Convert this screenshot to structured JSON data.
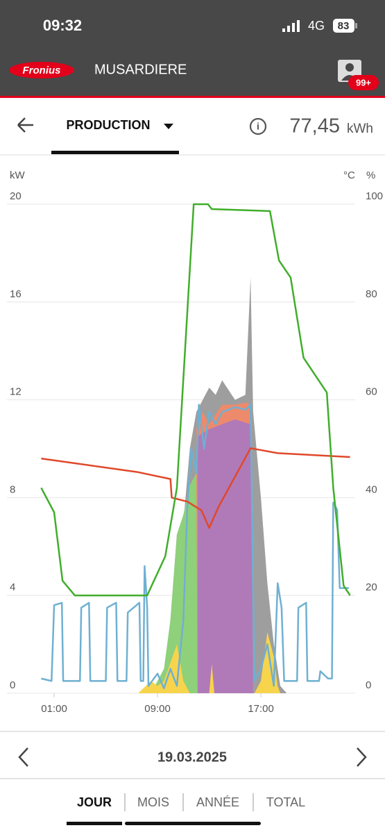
{
  "status_bar": {
    "time": "09:32",
    "network": "4G",
    "battery": "83"
  },
  "app_bar": {
    "logo": "Fronius",
    "site": "MUSARDIERE",
    "badge": "99+"
  },
  "header": {
    "tab": "PRODUCTION",
    "total": "77,45",
    "unit": "kWh"
  },
  "chart_data": {
    "type": "line",
    "y_label": "kW",
    "y2_label_1": "°C",
    "y2_label_2": "%",
    "xlim": [
      0,
      24
    ],
    "xticks": [
      {
        "value": 1,
        "label": "01:00"
      },
      {
        "value": 9,
        "label": "09:00"
      },
      {
        "value": 17,
        "label": "17:00"
      }
    ],
    "ylim": [
      0,
      20
    ],
    "yticks": [
      0,
      4,
      8,
      12,
      16,
      20
    ],
    "y2lim": [
      0,
      100
    ],
    "y2ticks": [
      0,
      20,
      40,
      60,
      80,
      100
    ],
    "grid": true,
    "series": [
      {
        "type": "area",
        "color": "#9e9e9e",
        "axis": "y",
        "x": [
          8.5,
          9.5,
          10.0,
          10.5,
          11.0,
          11.5,
          12.0,
          12.5,
          13.0,
          13.5,
          14.0,
          15.0,
          15.8,
          16.2,
          16.4,
          17.0,
          17.5,
          18.0,
          18.5,
          19.0
        ],
        "values": [
          0,
          0.5,
          3,
          6.5,
          7.0,
          10,
          11.5,
          12.0,
          12.5,
          12.2,
          12.8,
          12.0,
          12.2,
          17.0,
          11.5,
          8.0,
          4.5,
          2.0,
          0.3,
          0
        ]
      },
      {
        "type": "area",
        "color": "#ee8a6c",
        "axis": "y",
        "x": [
          12.0,
          12.0,
          12.5,
          13.0,
          14.0,
          15.0,
          16.0,
          16.3,
          16.3
        ],
        "values": [
          0,
          10.8,
          11.5,
          11.0,
          11.8,
          11.8,
          11.9,
          11.0,
          0
        ]
      },
      {
        "type": "area",
        "color": "#b07ab8",
        "axis": "y",
        "x": [
          12.1,
          12.1,
          13.0,
          14.0,
          15.0,
          16.2,
          16.4
        ],
        "values": [
          0,
          10.5,
          10.8,
          11.0,
          11.2,
          11.0,
          0
        ]
      },
      {
        "type": "area",
        "color": "#8fd07a",
        "axis": "y",
        "x": [
          8.5,
          9.5,
          10.0,
          10.5,
          11.0,
          11.5,
          12.0,
          12.1
        ],
        "values": [
          0,
          1.0,
          3.0,
          6.5,
          7.3,
          8.5,
          9.0,
          0
        ]
      },
      {
        "type": "area",
        "color": "#f7d44c",
        "axis": "y",
        "x": [
          7.5,
          8.5,
          9.0,
          9.5,
          10.5,
          11.0,
          11.5,
          13.0,
          13.2,
          13.4,
          16.5,
          17.0,
          17.5,
          18.0,
          18.3,
          18.5
        ],
        "values": [
          0,
          0.5,
          0.3,
          0.5,
          2.0,
          0.5,
          0,
          0,
          1.2,
          0,
          0,
          0.5,
          2.5,
          1.5,
          0.3,
          0
        ]
      },
      {
        "type": "line",
        "color": "#6fb0d2",
        "axis": "y",
        "x": [
          0,
          0.8,
          1.0,
          1.6,
          1.7,
          3.0,
          3.1,
          3.7,
          3.8,
          5.0,
          5.1,
          5.8,
          5.9,
          6.6,
          6.7,
          7.6,
          7.7,
          7.9,
          8.0,
          8.2,
          8.3,
          9.0,
          9.5,
          10.0,
          10.5,
          11.0,
          11.3,
          11.6,
          12.0,
          12.2,
          12.6,
          13.0,
          13.5,
          14.0,
          15.0,
          15.8,
          16.2,
          16.5,
          17.0,
          17.5,
          18.0,
          18.3,
          18.6,
          18.8,
          19.8,
          19.9,
          20.5,
          20.6,
          21.5,
          21.6,
          22.2,
          22.5,
          22.6,
          22.9,
          23.1,
          23.8
        ],
        "values": [
          0.6,
          0.5,
          3.6,
          3.7,
          0.5,
          0.5,
          3.5,
          3.7,
          0.5,
          0.5,
          3.5,
          3.7,
          0.5,
          0.5,
          3.3,
          3.7,
          0.5,
          0.5,
          5.2,
          3.5,
          0.3,
          0.8,
          0.2,
          1.0,
          0.3,
          3.0,
          7.5,
          10.0,
          9.0,
          11.8,
          10.0,
          11.5,
          11.0,
          11.5,
          11.7,
          11.6,
          11.8,
          0.5,
          1.0,
          2.0,
          0.3,
          4.5,
          3.5,
          0.5,
          0.5,
          3.5,
          3.7,
          0.5,
          0.5,
          0.9,
          0.6,
          0.6,
          7.8,
          7.5,
          4.3,
          4.3
        ]
      },
      {
        "type": "line",
        "color": "#e0482a",
        "axis": "y2",
        "x": [
          0,
          7.5,
          10.0,
          10.1,
          11.3,
          12.4,
          13.0,
          13.7,
          16.2,
          18.3,
          23.9
        ],
        "values": [
          48,
          45.2,
          43.8,
          40,
          39.2,
          37.4,
          33.8,
          38,
          50.1,
          49.1,
          48.3
        ]
      },
      {
        "type": "line",
        "color": "#3fae2a",
        "axis": "y2",
        "x": [
          0,
          1.0,
          1.65,
          2.6,
          8.2,
          9.6,
          10.5,
          11.8,
          12.9,
          13.2,
          17.7,
          18.4,
          19.3,
          20.3,
          22.1,
          22.6,
          23.4,
          23.9
        ],
        "values": [
          42,
          37,
          23,
          20,
          20,
          28,
          42,
          100,
          100,
          99,
          98.6,
          88.5,
          85,
          68.6,
          61.5,
          42,
          22,
          20
        ]
      }
    ]
  },
  "footer": {
    "date": "19.03.2025",
    "tabs": [
      "JOUR",
      "MOIS",
      "ANNÉE",
      "TOTAL"
    ]
  }
}
